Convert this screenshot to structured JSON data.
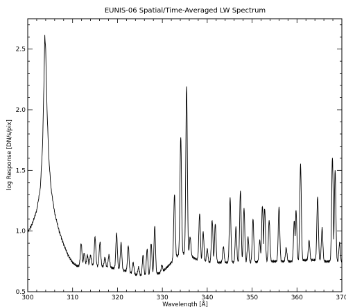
{
  "chart_data": {
    "type": "line",
    "title": "EUNIS-06 Spatial/Time-Averaged LW Spectrum",
    "xlabel": "Wavelength [Å]",
    "ylabel": "log Response [DN/s/pix]",
    "xlim": [
      300,
      370
    ],
    "ylim": [
      0.5,
      2.75
    ],
    "grid": false,
    "x_ticks": [
      {
        "value": 300,
        "label": "300"
      },
      {
        "value": 310,
        "label": "310"
      },
      {
        "value": 320,
        "label": "320"
      },
      {
        "value": 330,
        "label": "330"
      },
      {
        "value": 340,
        "label": "340"
      },
      {
        "value": 350,
        "label": "350"
      },
      {
        "value": 360,
        "label": "360"
      },
      {
        "value": 370,
        "label": "370"
      }
    ],
    "y_ticks": [
      {
        "value": 0.5,
        "label": "0.5"
      },
      {
        "value": 1.0,
        "label": "1.0"
      },
      {
        "value": 1.5,
        "label": "1.5"
      },
      {
        "value": 2.0,
        "label": "2.0"
      },
      {
        "value": 2.5,
        "label": "2.5"
      }
    ],
    "baseline": [
      [
        300.0,
        0.99
      ],
      [
        301.0,
        1.06
      ],
      [
        302.0,
        1.17
      ],
      [
        302.8,
        1.35
      ],
      [
        303.3,
        1.7
      ],
      [
        303.6,
        2.2
      ],
      [
        303.8,
        2.61
      ],
      [
        304.0,
        2.5
      ],
      [
        304.3,
        2.0
      ],
      [
        304.7,
        1.6
      ],
      [
        305.2,
        1.35
      ],
      [
        306.0,
        1.15
      ],
      [
        307.0,
        1.0
      ],
      [
        308.0,
        0.89
      ],
      [
        309.0,
        0.8
      ],
      [
        310.0,
        0.74
      ],
      [
        311.0,
        0.71
      ],
      [
        312.0,
        0.72
      ],
      [
        314.0,
        0.72
      ],
      [
        316.0,
        0.71
      ],
      [
        318.0,
        0.7
      ],
      [
        320.0,
        0.69
      ],
      [
        322.0,
        0.67
      ],
      [
        324.0,
        0.64
      ],
      [
        326.0,
        0.63
      ],
      [
        328.0,
        0.64
      ],
      [
        330.0,
        0.66
      ],
      [
        331.0,
        0.7
      ],
      [
        332.0,
        0.74
      ],
      [
        333.0,
        0.78
      ],
      [
        334.0,
        0.82
      ],
      [
        336.0,
        0.8
      ],
      [
        338.0,
        0.76
      ],
      [
        340.0,
        0.74
      ],
      [
        342.0,
        0.74
      ],
      [
        344.0,
        0.74
      ],
      [
        346.0,
        0.74
      ],
      [
        348.0,
        0.74
      ],
      [
        350.0,
        0.74
      ],
      [
        352.0,
        0.75
      ],
      [
        354.0,
        0.75
      ],
      [
        356.0,
        0.75
      ],
      [
        358.0,
        0.75
      ],
      [
        360.0,
        0.75
      ],
      [
        362.0,
        0.76
      ],
      [
        364.0,
        0.76
      ],
      [
        366.0,
        0.75
      ],
      [
        368.0,
        0.75
      ],
      [
        370.0,
        0.74
      ]
    ],
    "peaks": [
      {
        "x": 311.9,
        "y": 0.9
      },
      {
        "x": 312.6,
        "y": 0.82
      },
      {
        "x": 313.3,
        "y": 0.8
      },
      {
        "x": 314.0,
        "y": 0.8
      },
      {
        "x": 315.0,
        "y": 0.95
      },
      {
        "x": 316.1,
        "y": 0.91
      },
      {
        "x": 317.2,
        "y": 0.78
      },
      {
        "x": 318.1,
        "y": 0.8
      },
      {
        "x": 319.8,
        "y": 0.98
      },
      {
        "x": 320.8,
        "y": 0.9
      },
      {
        "x": 322.4,
        "y": 0.88
      },
      {
        "x": 323.5,
        "y": 0.74
      },
      {
        "x": 324.7,
        "y": 0.7
      },
      {
        "x": 325.7,
        "y": 0.8
      },
      {
        "x": 326.6,
        "y": 0.85
      },
      {
        "x": 327.5,
        "y": 0.9
      },
      {
        "x": 328.3,
        "y": 1.04
      },
      {
        "x": 329.9,
        "y": 0.72
      },
      {
        "x": 332.7,
        "y": 1.3
      },
      {
        "x": 334.1,
        "y": 1.78
      },
      {
        "x": 335.4,
        "y": 2.19
      },
      {
        "x": 336.2,
        "y": 0.95
      },
      {
        "x": 338.3,
        "y": 1.14
      },
      {
        "x": 339.1,
        "y": 0.99
      },
      {
        "x": 340.0,
        "y": 0.85
      },
      {
        "x": 341.1,
        "y": 1.09
      },
      {
        "x": 341.8,
        "y": 1.06
      },
      {
        "x": 343.6,
        "y": 0.87
      },
      {
        "x": 345.1,
        "y": 1.27
      },
      {
        "x": 346.4,
        "y": 1.03
      },
      {
        "x": 347.4,
        "y": 1.33
      },
      {
        "x": 348.2,
        "y": 1.19
      },
      {
        "x": 349.1,
        "y": 0.95
      },
      {
        "x": 350.2,
        "y": 1.1
      },
      {
        "x": 351.7,
        "y": 0.92
      },
      {
        "x": 352.3,
        "y": 1.21
      },
      {
        "x": 352.8,
        "y": 1.19
      },
      {
        "x": 353.8,
        "y": 1.09
      },
      {
        "x": 356.0,
        "y": 1.2
      },
      {
        "x": 357.6,
        "y": 0.86
      },
      {
        "x": 359.4,
        "y": 1.09
      },
      {
        "x": 359.8,
        "y": 1.17
      },
      {
        "x": 360.8,
        "y": 1.55
      },
      {
        "x": 362.7,
        "y": 0.92
      },
      {
        "x": 364.6,
        "y": 1.28
      },
      {
        "x": 365.6,
        "y": 1.02
      },
      {
        "x": 367.9,
        "y": 1.61
      },
      {
        "x": 368.5,
        "y": 1.5
      },
      {
        "x": 369.5,
        "y": 0.9
      }
    ]
  }
}
